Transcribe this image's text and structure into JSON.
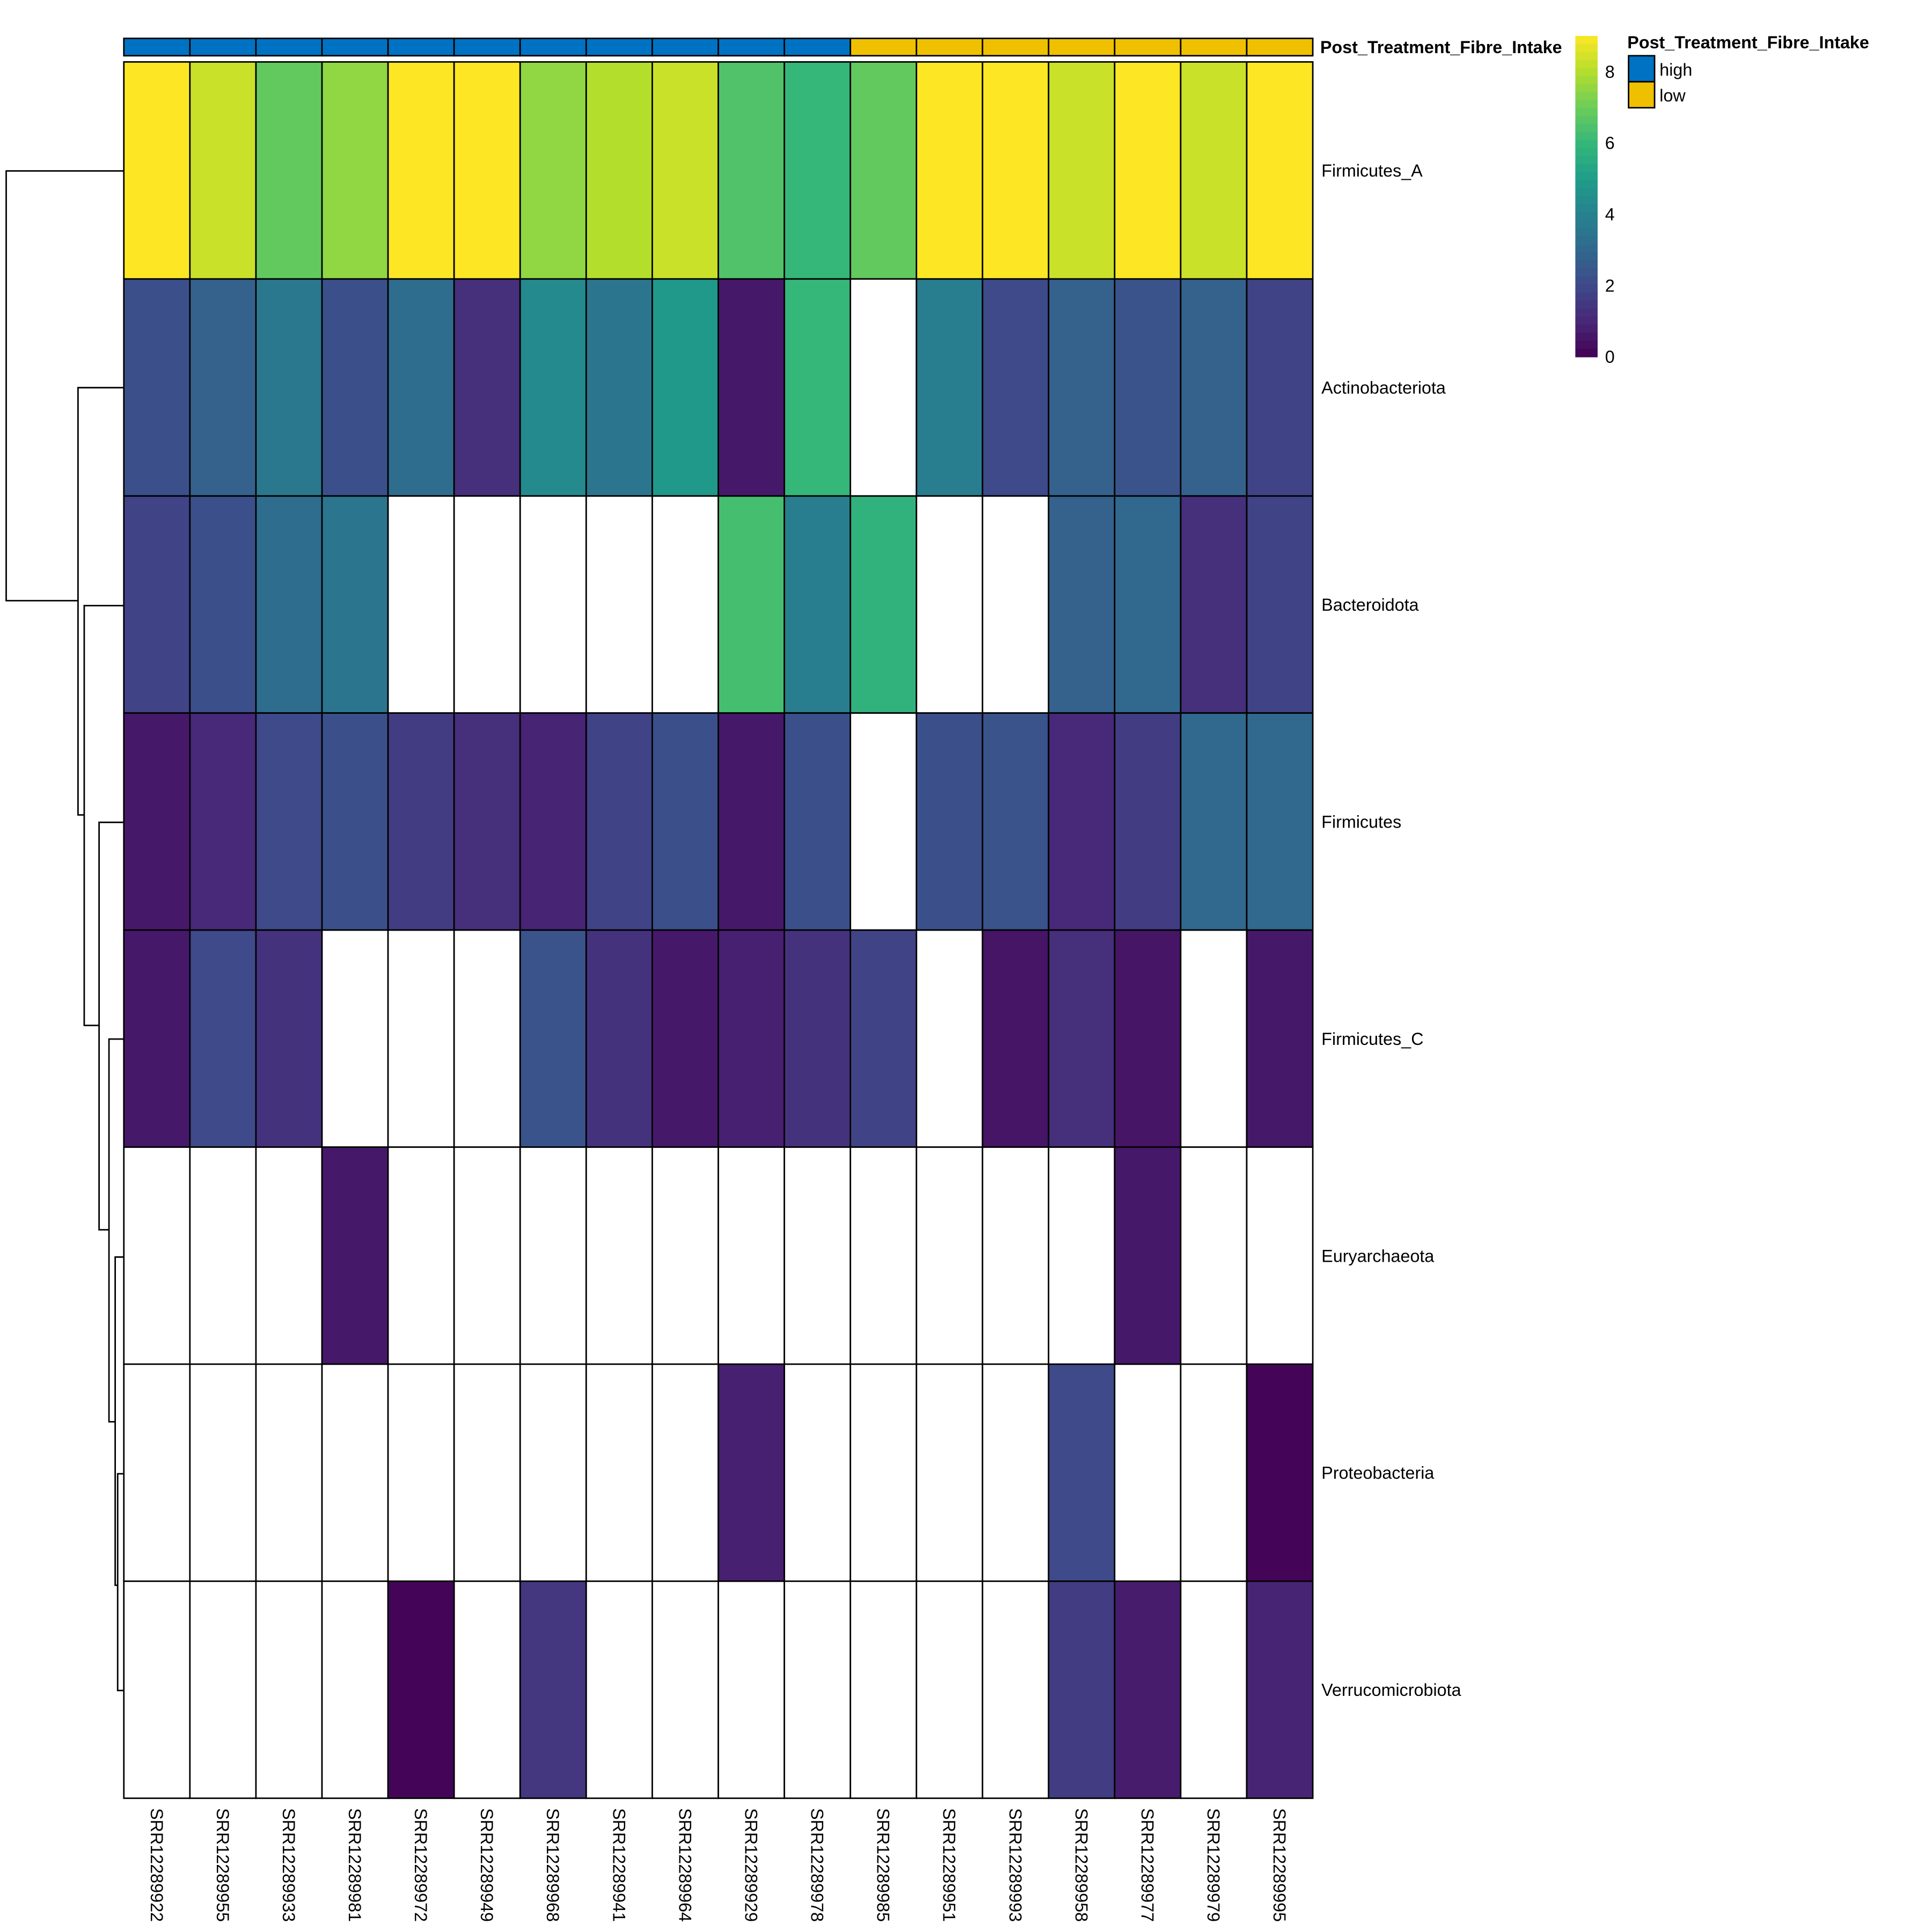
{
  "chart_data": {
    "type": "heatmap",
    "columns": [
      "SRR12289922",
      "SRR12289955",
      "SRR12289933",
      "SRR12289981",
      "SRR12289972",
      "SRR12289949",
      "SRR12289968",
      "SRR12289941",
      "SRR12289964",
      "SRR12289929",
      "SRR12289978",
      "SRR12289985",
      "SRR12289951",
      "SRR12289993",
      "SRR12289958",
      "SRR12289977",
      "SRR12289979",
      "SRR12289995"
    ],
    "rows": [
      "Firmicutes_A",
      "Actinobacteriota",
      "Bacteroidota",
      "Firmicutes",
      "Firmicutes_C",
      "Euryarchaeota",
      "Proteobacteria",
      "Verrucomicrobiota"
    ],
    "values": [
      [
        9,
        8.3,
        6.8,
        7.5,
        9,
        9,
        7.5,
        8,
        8.3,
        6.5,
        6,
        6.8,
        9,
        9,
        8.3,
        9,
        8.3,
        9
      ],
      [
        2.2,
        2.8,
        3.6,
        2.2,
        3.2,
        1.2,
        4.3,
        3.5,
        4.8,
        0.6,
        6,
        null,
        3.8,
        2,
        2.8,
        2.3,
        2.8,
        1.8
      ],
      [
        1.8,
        2.2,
        3.2,
        3.5,
        null,
        null,
        null,
        null,
        null,
        6.3,
        3.8,
        5.8,
        null,
        null,
        2.8,
        3,
        1.2,
        1.8
      ],
      [
        0.6,
        1,
        2,
        2.2,
        1.6,
        1.2,
        0.9,
        1.8,
        2.2,
        0.6,
        2.2,
        null,
        2.2,
        2.3,
        1,
        1.6,
        3,
        3
      ],
      [
        0.6,
        2,
        1.3,
        null,
        null,
        null,
        2.3,
        1.3,
        0.6,
        0.8,
        1.3,
        1.8,
        null,
        0.5,
        1.2,
        0.5,
        null,
        0.6
      ],
      [
        null,
        null,
        null,
        0.6,
        null,
        null,
        null,
        null,
        null,
        null,
        null,
        null,
        null,
        null,
        null,
        0.6,
        null,
        null
      ],
      [
        null,
        null,
        null,
        null,
        null,
        null,
        null,
        null,
        null,
        0.8,
        null,
        null,
        null,
        null,
        2,
        null,
        null,
        0.1
      ],
      [
        null,
        null,
        null,
        null,
        0.1,
        null,
        1.4,
        null,
        null,
        null,
        null,
        null,
        null,
        null,
        1.6,
        0.7,
        null,
        0.9
      ]
    ],
    "annotation": {
      "name": "Post_Treatment_Fibre_Intake",
      "groups": [
        "high",
        "high",
        "high",
        "high",
        "high",
        "high",
        "high",
        "high",
        "high",
        "high",
        "high",
        "low",
        "low",
        "low",
        "low",
        "low",
        "low",
        "low"
      ],
      "levels": [
        {
          "label": "high",
          "color": "#0072C3"
        },
        {
          "label": "low",
          "color": "#EFC000"
        }
      ]
    },
    "colorbar": {
      "range": [
        0,
        9
      ],
      "ticks": [
        "0",
        "2",
        "4",
        "6",
        "8"
      ],
      "palette": "viridis"
    },
    "missing_color": "#FFFFFF"
  }
}
